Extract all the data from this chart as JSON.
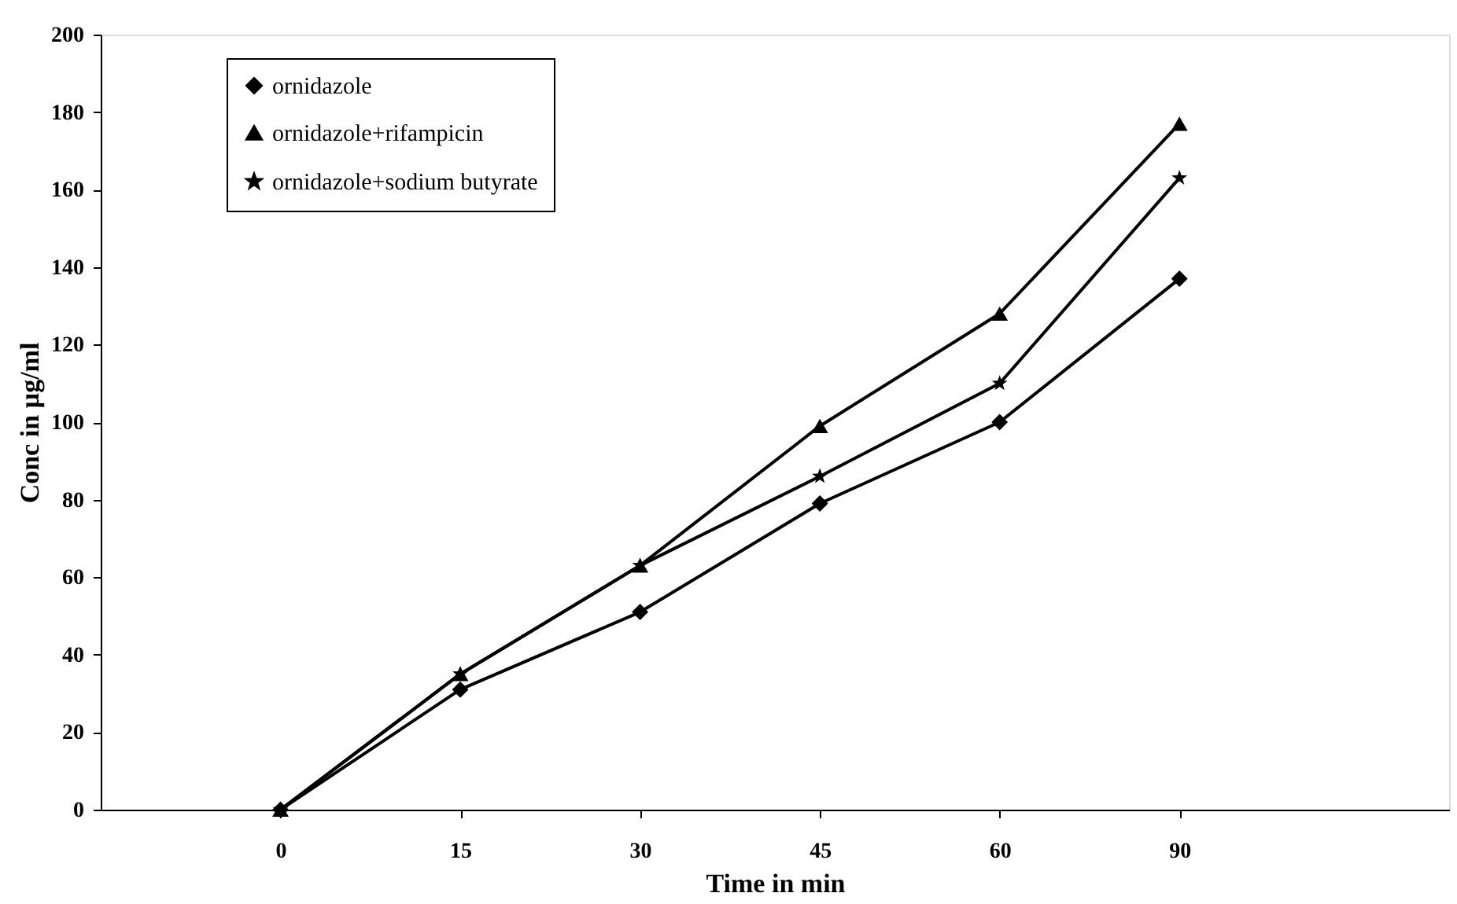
{
  "chart_data": {
    "type": "line",
    "xlabel": "Time in min",
    "ylabel": "Conc in  µg/ml",
    "categories": [
      "0",
      "15",
      "30",
      "45",
      "60",
      "90"
    ],
    "ylim": [
      0,
      200
    ],
    "yticks": [
      0,
      20,
      40,
      60,
      80,
      100,
      120,
      140,
      160,
      180,
      200
    ],
    "grid": false,
    "legend": "top left",
    "line_style": "solid",
    "series": [
      {
        "name": "ornidazole",
        "color": "#000000",
        "marker": "diamond",
        "values": [
          0,
          31,
          51,
          79,
          100,
          137
        ]
      },
      {
        "name": "ornidazole+rifampicin",
        "color": "#000000",
        "marker": "triangle",
        "values": [
          0,
          35,
          63,
          99,
          128,
          177
        ]
      },
      {
        "name": "ornidazole+sodium butyrate",
        "color": "#000000",
        "marker": "star",
        "values": [
          0,
          35,
          63,
          86,
          110,
          163
        ]
      }
    ]
  }
}
